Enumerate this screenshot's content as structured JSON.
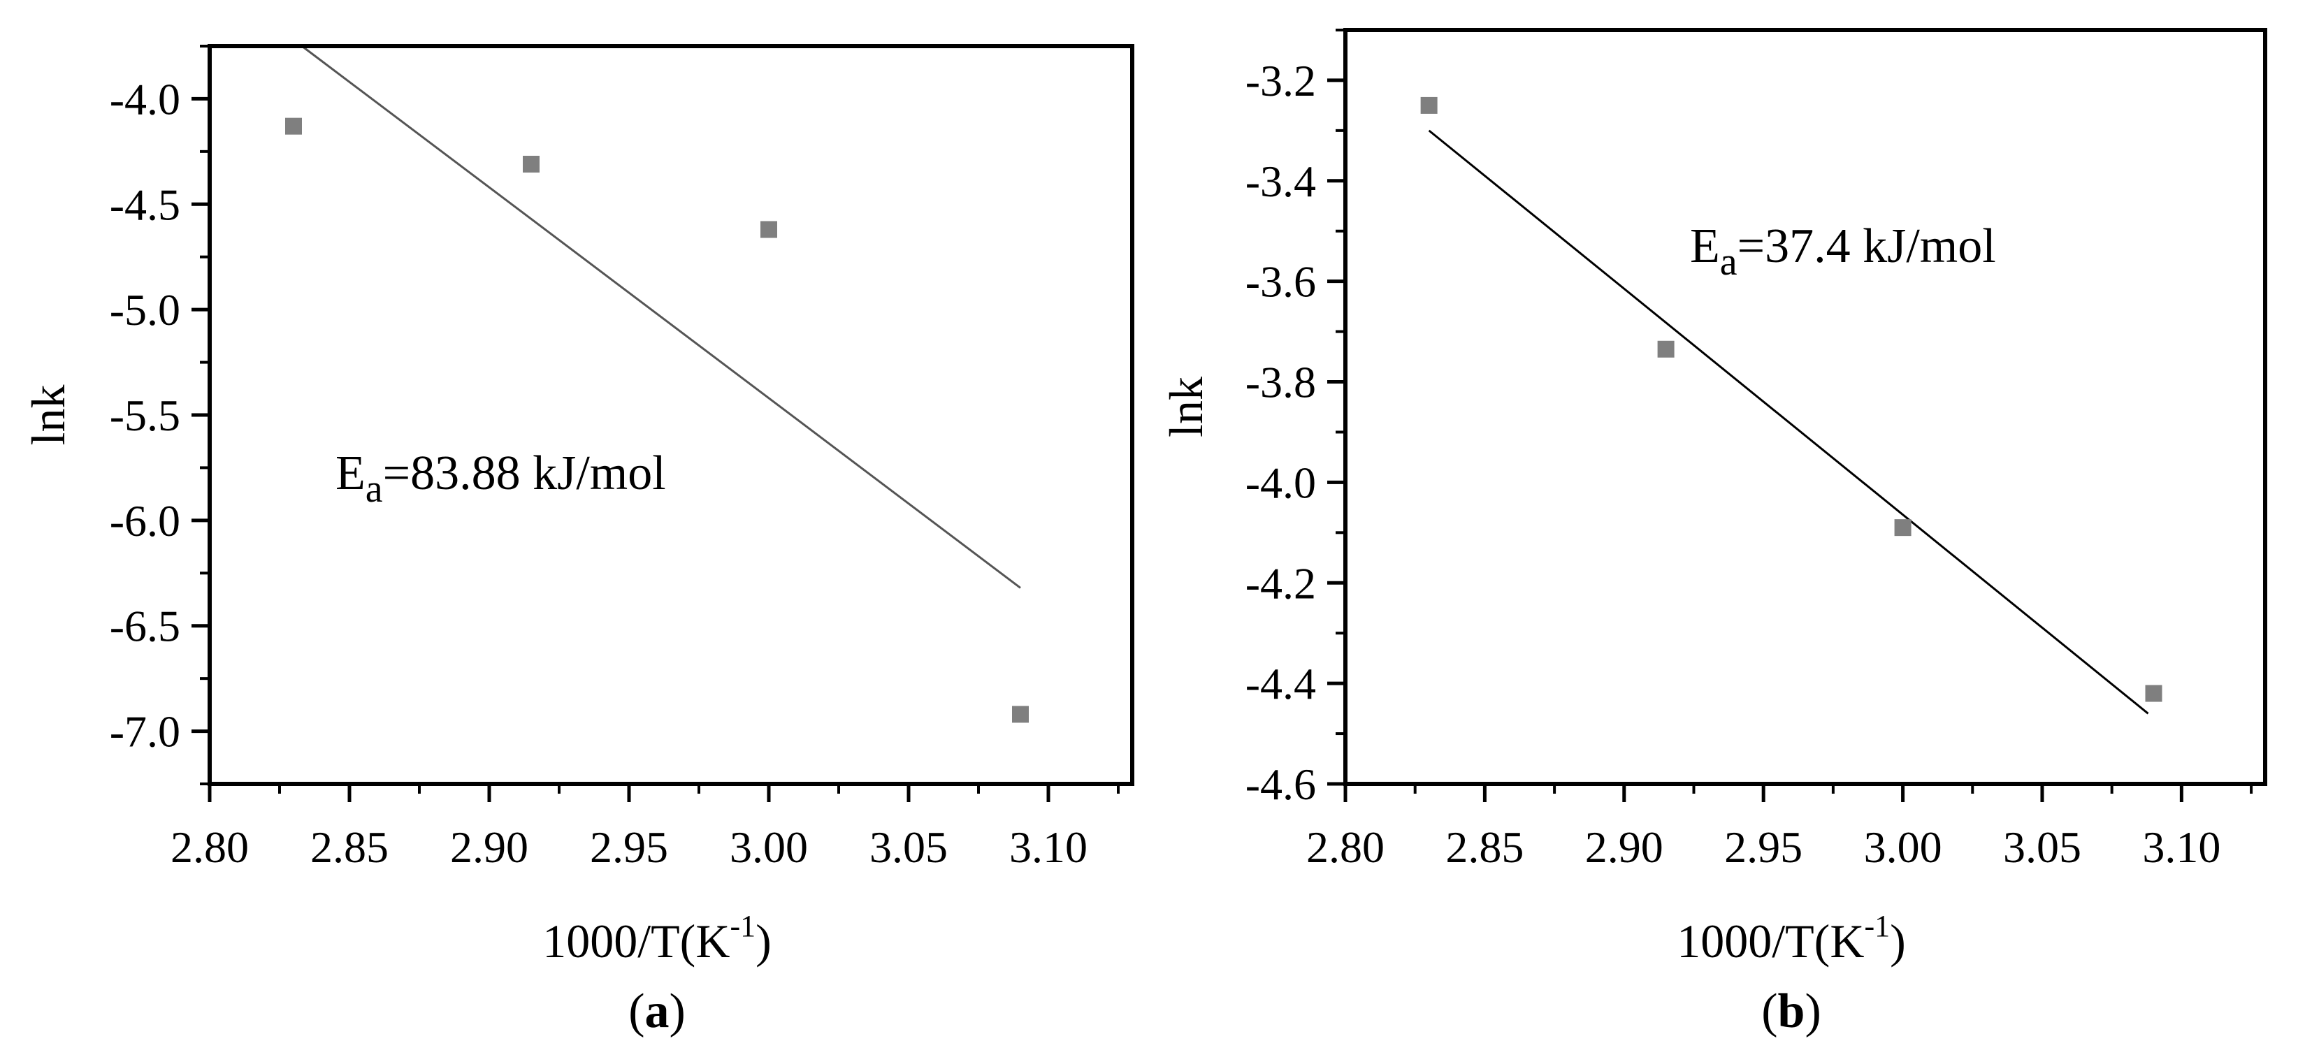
{
  "chart_data": [
    {
      "type": "scatter",
      "panel_label": "a",
      "xlabel": "1000/T(K",
      "xlabel_sup": "-1",
      "xlabel_close": ")",
      "ylabel": "lnk",
      "xlim": [
        2.8,
        3.13
      ],
      "ylim": [
        -7.25,
        -3.75
      ],
      "xticks": [
        "2.80",
        "2.85",
        "2.90",
        "2.95",
        "3.00",
        "3.05",
        "3.10"
      ],
      "yticks": [
        "-4.0",
        "-4.5",
        "-5.0",
        "-5.5",
        "-6.0",
        "-6.5",
        "-7.0"
      ],
      "annotation": {
        "main": "E",
        "sub": "a",
        "rest": "=83.88 kJ/mol"
      },
      "series": [
        {
          "x": [
            2.83,
            2.915,
            3.0,
            3.09
          ],
          "y": [
            -4.13,
            -4.31,
            -4.62,
            -6.92
          ]
        }
      ],
      "fit_line": {
        "x": [
          2.833,
          3.09
        ],
        "y": [
          -3.75,
          -6.32
        ]
      },
      "grid": false,
      "colors": {
        "marker": "#7f7f7f",
        "line": "#555555"
      }
    },
    {
      "type": "scatter",
      "panel_label": "b",
      "xlabel": "1000/T(K",
      "xlabel_sup": "-1",
      "xlabel_close": ")",
      "ylabel": "lnk",
      "xlim": [
        2.8,
        3.13
      ],
      "ylim": [
        -4.6,
        -3.1
      ],
      "xticks": [
        "2.80",
        "2.85",
        "2.90",
        "2.95",
        "3.00",
        "3.05",
        "3.10"
      ],
      "yticks": [
        "-3.2",
        "-3.4",
        "-3.6",
        "-3.8",
        "-4.0",
        "-4.2",
        "-4.4",
        "-4.6"
      ],
      "annotation": {
        "main": "E",
        "sub": "a",
        "rest": "=37.4 kJ/mol"
      },
      "series": [
        {
          "x": [
            2.83,
            2.915,
            3.0,
            3.09
          ],
          "y": [
            -3.25,
            -3.735,
            -4.09,
            -4.42
          ]
        }
      ],
      "fit_line": {
        "x": [
          2.83,
          3.088
        ],
        "y": [
          -3.3,
          -4.46
        ]
      },
      "grid": false,
      "colors": {
        "marker": "#7f7f7f",
        "line": "#000000"
      }
    }
  ]
}
